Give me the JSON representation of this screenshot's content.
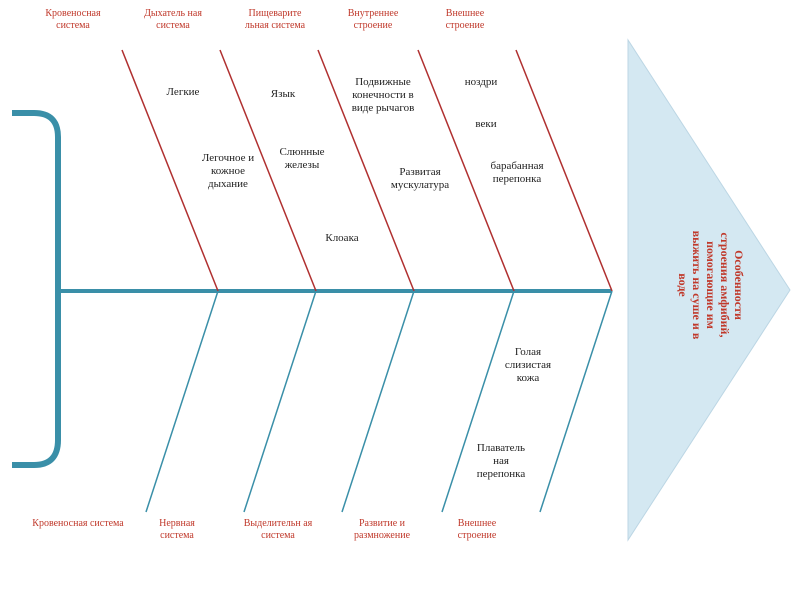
{
  "diagram": {
    "head": "Особенности строения амфибий, помогающие им выжить на суше и в воде",
    "top_categories": [
      "Кровеносная система",
      "Дыхатель ная система",
      "Пищеварите льная система",
      "Внутреннее строение",
      "Внешнее строение"
    ],
    "bottom_categories": [
      "Кровеносная система",
      "Нервная система",
      "Выделительн ая система",
      "Развитие и размножение",
      "Внешнее строение"
    ],
    "notes": {
      "legkie": "Легкие",
      "legochnoe": "Легочное и кожное дыхание",
      "yazyk": "Язык",
      "slyunnye": "Слюнные железы",
      "kloaka": "Клоака",
      "konechnosti": "Подвижные конечности в виде рычагов",
      "muskulatura": "Развитая мускулатура",
      "nozdri": "ноздри",
      "veki": "веки",
      "pereponka_bar": "барабанная перепонка",
      "golaya_kozha": "Голая слизистая кожа",
      "plavatelnaya": "Плаватель ная перепонка"
    },
    "colors": {
      "spine": "#3a8fa8",
      "bone_top": "#b03030",
      "head_fill": "#d4e8f2",
      "text_red": "#c0392b"
    }
  }
}
